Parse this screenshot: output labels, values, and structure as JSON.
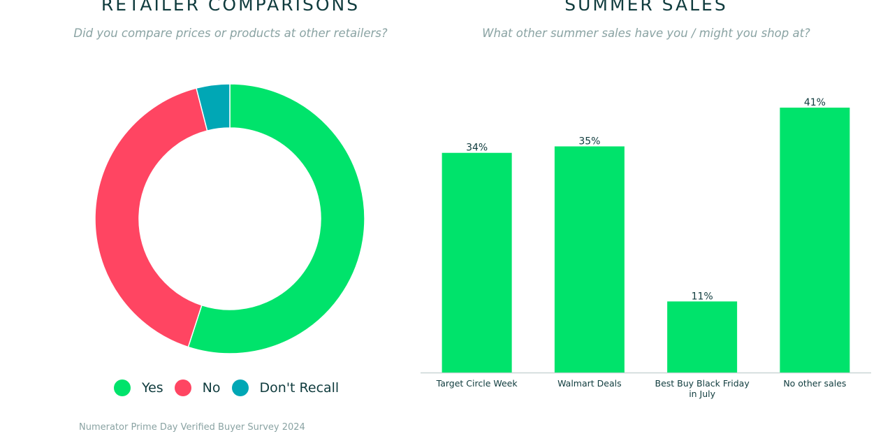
{
  "left_panel": {
    "title": "RETAILER COMPARISONS",
    "subtitle": "Did you compare prices or products at other retailers?"
  },
  "right_panel": {
    "title": "SUMMER SALES",
    "subtitle": "What other summer sales have you / might you shop at?"
  },
  "source": "Numerator Prime Day Verified Buyer Survey 2024",
  "colors": {
    "yes": "#00e36b",
    "no": "#ff4562",
    "dont_recall": "#00a7b5",
    "bar": "#00e36b",
    "axis": "#c9d6d6",
    "text": "#0f3b3d"
  },
  "chart_data": [
    {
      "type": "pie",
      "donut": true,
      "title": "RETAILER COMPARISONS",
      "subtitle": "Did you compare prices or products at other retailers?",
      "categories": [
        "Yes",
        "No",
        "Don't Recall"
      ],
      "values": [
        55,
        41,
        4
      ],
      "colors": [
        "#00e36b",
        "#ff4562",
        "#00a7b5"
      ],
      "legend": "bottom"
    },
    {
      "type": "bar",
      "title": "SUMMER SALES",
      "subtitle": "What other summer sales have you / might you shop at?",
      "categories": [
        "Target Circle Week",
        "Walmart Deals",
        "Best Buy Black Friday in July",
        "No other sales"
      ],
      "category_lines": [
        [
          "Target Circle Week"
        ],
        [
          "Walmart Deals"
        ],
        [
          "Best Buy Black Friday",
          "in July"
        ],
        [
          "No other sales"
        ]
      ],
      "values": [
        34,
        35,
        11,
        41
      ],
      "value_labels": [
        "34%",
        "35%",
        "11%",
        "41%"
      ],
      "ylim": [
        0,
        41
      ],
      "grid": false
    }
  ]
}
